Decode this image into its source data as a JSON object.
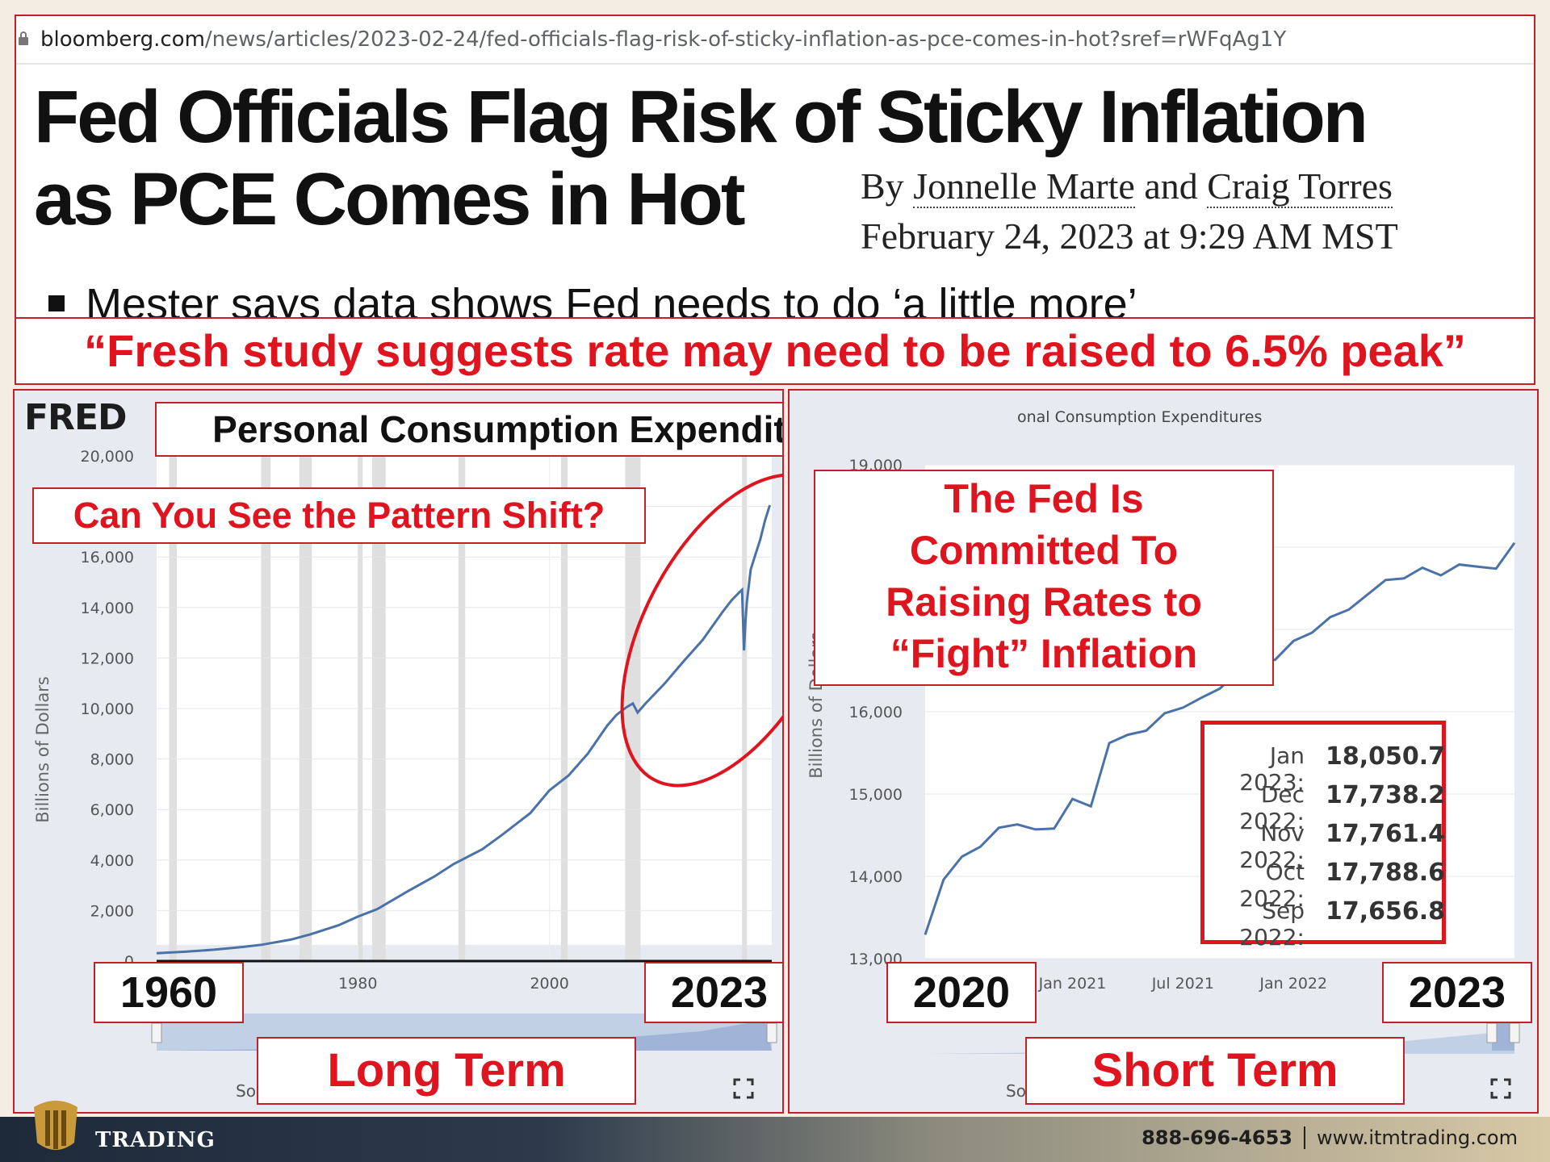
{
  "article": {
    "url_host": "bloomberg.com",
    "url_path": "/news/articles/2023-02-24/fed-officials-flag-risk-of-sticky-inflation-as-pce-comes-in-hot?sref=rWFqAg1Y",
    "headline_line1": "Fed Officials Flag Risk of Sticky Inflation",
    "headline_line2": "as PCE Comes in Hot",
    "by": "By",
    "author1": "Jonnelle Marte",
    "and": "and",
    "author2": "Craig Torres",
    "date": "February 24, 2023 at 9:29 AM MST",
    "bullet": "Mester says data shows Fed needs to do ‘a little more’"
  },
  "quote": "“Fresh study suggests rate may need to be raised to 6.5% peak”",
  "left_panel": {
    "logo": "FRED",
    "title": "Personal Consumption Expenditures (PCE)",
    "pattern_callout": "Can You See the Pattern Shift?",
    "start_label": "1960",
    "end_label": "2023",
    "term_label": "Long Term",
    "source_stub": "So"
  },
  "right_panel": {
    "graph_title_fragment": "onal Consumption Expenditures",
    "fed_callout": [
      "The Fed Is",
      "Committed To",
      "Raising Rates to",
      "“Fight” Inflation"
    ],
    "start_label": "2020",
    "end_label": "2023",
    "term_label": "Short Term",
    "source_stub": "So",
    "tooltip": [
      {
        "date": "Jan 2023:",
        "value": "18,050.7"
      },
      {
        "date": "Dec 2022:",
        "value": "17,738.2"
      },
      {
        "date": "Nov 2022:",
        "value": "17,761.4"
      },
      {
        "date": "Oct 2022:",
        "value": "17,788.6"
      },
      {
        "date": "Sep 2022:",
        "value": "17,656.8"
      }
    ]
  },
  "footer": {
    "brand": "TRADING",
    "phone": "888-696-4653",
    "website": "www.itmtrading.com"
  },
  "colors": {
    "line": "#4a72a8",
    "accent_red": "#e0141e",
    "plot_bg": "#ffffff",
    "recession": "#dfdfdf"
  },
  "chart_data": [
    {
      "type": "line",
      "title": "",
      "ylabel": "Billions of Dollars",
      "xlim": [
        1959,
        2023.2
      ],
      "ylim": [
        0,
        20000
      ],
      "yticks": [
        0,
        2000,
        4000,
        6000,
        8000,
        10000,
        12000,
        14000,
        16000,
        18000,
        20000
      ],
      "ytick_labels": [
        "0",
        "2,000",
        "4,000",
        "6,000",
        "8,000",
        "10,000",
        "12,000",
        "14,000",
        "16,000",
        "",
        "20,000"
      ],
      "xticks": [
        1980,
        2000
      ],
      "recessions": [
        [
          1960.3,
          1961.1
        ],
        [
          1969.9,
          1970.9
        ],
        [
          1973.9,
          1975.2
        ],
        [
          1980.0,
          1980.5
        ],
        [
          1981.5,
          1982.9
        ],
        [
          1990.5,
          1991.2
        ],
        [
          2001.2,
          2001.9
        ],
        [
          2007.9,
          2009.5
        ],
        [
          2020.1,
          2020.4
        ]
      ],
      "series": [
        {
          "x": [
            1959,
            1962,
            1965,
            1968,
            1970,
            1973,
            1975,
            1978,
            1980,
            1982,
            1985,
            1988,
            1990,
            1993,
            1995,
            1998,
            2000,
            2002,
            2004,
            2006,
            2007,
            2008,
            2008.7,
            2009.2,
            2010,
            2012,
            2014,
            2016,
            2018,
            2019,
            2019.9,
            2020.1,
            2020.3,
            2020.45,
            2020.6,
            2021,
            2021.5,
            2022,
            2022.5,
            2023
          ],
          "y": [
            310,
            370,
            450,
            560,
            650,
            850,
            1050,
            1420,
            1760,
            2050,
            2720,
            3350,
            3840,
            4430,
            4980,
            5860,
            6760,
            7350,
            8210,
            9310,
            9750,
            10040,
            10200,
            9840,
            10190,
            10980,
            11870,
            12720,
            13790,
            14280,
            14630,
            14700,
            12300,
            13450,
            14200,
            15500,
            16100,
            16700,
            17450,
            18050
          ]
        }
      ]
    },
    {
      "type": "line",
      "title": "",
      "ylabel": "Billions of Dollars",
      "xlim": [
        "2020-05",
        "2023-01"
      ],
      "ylim": [
        13000,
        19000
      ],
      "yticks": [
        13000,
        14000,
        15000,
        16000,
        19000
      ],
      "ytick_labels": [
        "13,000",
        "14,000",
        "15,000",
        "16,000",
        "19,000"
      ],
      "xtick_labels": [
        "Jan 2021",
        "Jul 2021",
        "Jan 2022"
      ],
      "series": [
        {
          "x": [
            "2020-05",
            "2020-06",
            "2020-07",
            "2020-08",
            "2020-09",
            "2020-10",
            "2020-11",
            "2020-12",
            "2021-01",
            "2021-02",
            "2021-03",
            "2021-04",
            "2021-05",
            "2021-06",
            "2021-07",
            "2021-08",
            "2021-09",
            "2021-10",
            "2021-11",
            "2021-12",
            "2022-01",
            "2022-02",
            "2022-03",
            "2022-04",
            "2022-05",
            "2022-06",
            "2022-07",
            "2022-08",
            "2022-09",
            "2022-10",
            "2022-11",
            "2022-12",
            "2023-01"
          ],
          "y": [
            13290,
            13960,
            14240,
            14360,
            14590,
            14630,
            14570,
            14580,
            14940,
            14850,
            15620,
            15720,
            15770,
            15980,
            16050,
            16170,
            16280,
            16490,
            16640,
            16630,
            16860,
            16960,
            17150,
            17240,
            17420,
            17600,
            17620,
            17750,
            17656.8,
            17788.6,
            17761.4,
            17738.2,
            18050.7
          ]
        }
      ]
    }
  ]
}
